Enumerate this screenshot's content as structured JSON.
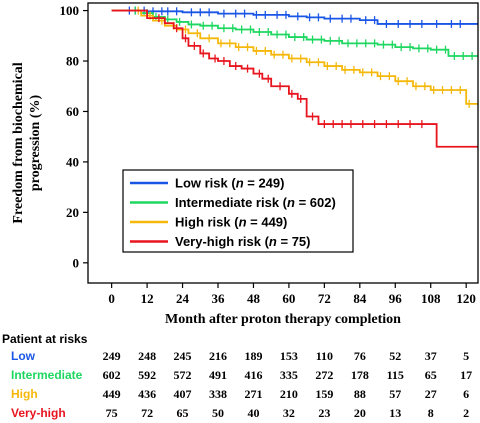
{
  "chart_data": {
    "type": "line",
    "step": true,
    "xlabel": "Month after proton therapy completion",
    "ylabel_lines": [
      "Freedom from biochemical",
      "progression (%)"
    ],
    "xlim": [
      -8,
      124
    ],
    "ylim": [
      -8,
      103
    ],
    "xticks": [
      0,
      12,
      24,
      36,
      48,
      60,
      72,
      84,
      96,
      108,
      120
    ],
    "yticks": [
      0,
      20,
      40,
      60,
      80,
      100
    ],
    "legend_placement": "lower-left",
    "series": [
      {
        "name_prefix": "Low risk (",
        "n_label": "n",
        "name_suffix": " = 249)",
        "color": "#1a56e6",
        "points": [
          [
            0,
            100
          ],
          [
            9,
            100
          ],
          [
            12,
            99.7
          ],
          [
            24,
            99.3
          ],
          [
            36,
            98.8
          ],
          [
            48,
            98.3
          ],
          [
            60,
            97.7
          ],
          [
            66,
            97.3
          ],
          [
            72,
            96.8
          ],
          [
            84,
            96.2
          ],
          [
            90,
            94.7
          ],
          [
            120,
            94.7
          ],
          [
            124,
            94.7
          ]
        ],
        "censor_x": [
          6,
          8,
          11,
          14,
          17,
          19,
          22,
          27,
          30,
          33,
          38,
          42,
          45,
          49,
          52,
          56,
          59,
          63,
          67,
          70,
          74,
          78,
          81,
          86,
          89,
          93,
          97,
          101,
          105,
          110,
          115,
          118
        ]
      },
      {
        "name_prefix": "Intermediate risk (",
        "n_label": "n",
        "name_suffix": " = 602)",
        "color": "#1ed760",
        "points": [
          [
            0,
            100
          ],
          [
            6,
            100
          ],
          [
            10,
            99
          ],
          [
            14,
            97.5
          ],
          [
            18,
            96.5
          ],
          [
            22,
            95.5
          ],
          [
            26,
            94.5
          ],
          [
            30,
            94
          ],
          [
            36,
            93
          ],
          [
            42,
            92.5
          ],
          [
            48,
            91.5
          ],
          [
            54,
            90.5
          ],
          [
            60,
            89.5
          ],
          [
            66,
            88.5
          ],
          [
            72,
            88
          ],
          [
            78,
            87
          ],
          [
            84,
            87
          ],
          [
            90,
            86.5
          ],
          [
            96,
            85.5
          ],
          [
            102,
            85
          ],
          [
            108,
            84.5
          ],
          [
            114,
            82
          ],
          [
            120,
            82
          ],
          [
            124,
            82
          ]
        ],
        "censor_x": [
          8,
          12,
          15,
          19,
          23,
          27,
          31,
          34,
          38,
          41,
          44,
          47,
          50,
          53,
          56,
          59,
          62,
          65,
          68,
          71,
          74,
          77,
          80,
          83,
          86,
          89,
          92,
          95,
          98,
          101,
          104,
          107,
          110,
          113,
          116,
          119,
          122
        ]
      },
      {
        "name_prefix": "High risk (",
        "n_label": "n",
        "name_suffix": " = 449)",
        "color": "#f5b80a",
        "points": [
          [
            0,
            100
          ],
          [
            6,
            100
          ],
          [
            10,
            98
          ],
          [
            14,
            96
          ],
          [
            18,
            94
          ],
          [
            22,
            92.5
          ],
          [
            26,
            91
          ],
          [
            30,
            89
          ],
          [
            36,
            87
          ],
          [
            42,
            85.5
          ],
          [
            48,
            84
          ],
          [
            54,
            82.5
          ],
          [
            60,
            81
          ],
          [
            66,
            79.5
          ],
          [
            72,
            78
          ],
          [
            78,
            76.5
          ],
          [
            84,
            75.5
          ],
          [
            90,
            74
          ],
          [
            96,
            72
          ],
          [
            102,
            70
          ],
          [
            108,
            68.5
          ],
          [
            114,
            68.5
          ],
          [
            120,
            63
          ],
          [
            124,
            63
          ]
        ],
        "censor_x": [
          9,
          13,
          17,
          21,
          25,
          29,
          33,
          37,
          40,
          43,
          46,
          49,
          52,
          55,
          58,
          61,
          64,
          67,
          70,
          73,
          76,
          79,
          82,
          85,
          88,
          91,
          94,
          97,
          100,
          103,
          106,
          109,
          112,
          115,
          118,
          121
        ]
      },
      {
        "name_prefix": "Very-high risk (",
        "n_label": "n",
        "name_suffix": " = 75)",
        "color": "#e8141e",
        "points": [
          [
            0,
            100
          ],
          [
            9,
            100
          ],
          [
            12,
            97
          ],
          [
            18,
            95
          ],
          [
            21,
            93
          ],
          [
            24,
            89
          ],
          [
            26,
            86
          ],
          [
            30,
            83
          ],
          [
            33,
            81
          ],
          [
            36,
            80
          ],
          [
            40,
            78
          ],
          [
            44,
            77
          ],
          [
            48,
            75
          ],
          [
            51,
            73
          ],
          [
            54,
            70
          ],
          [
            60,
            67
          ],
          [
            63,
            65
          ],
          [
            66,
            58
          ],
          [
            70,
            55
          ],
          [
            108,
            55
          ],
          [
            110,
            46
          ],
          [
            124,
            46
          ]
        ],
        "censor_x": [
          16,
          22,
          25,
          28,
          31,
          35,
          38,
          42,
          46,
          50,
          53,
          57,
          61,
          64,
          68,
          72,
          75,
          78,
          81,
          85,
          89,
          93,
          97,
          101,
          105
        ]
      }
    ]
  },
  "risk_table": {
    "header": "Patient at risks",
    "rows": [
      {
        "label": "Low",
        "color": "#1a56e6",
        "values": [
          "249",
          "248",
          "245",
          "216",
          "189",
          "153",
          "110",
          "76",
          "52",
          "37",
          "5"
        ]
      },
      {
        "label": "Intermediate",
        "color": "#1ed760",
        "values": [
          "602",
          "592",
          "572",
          "491",
          "416",
          "335",
          "272",
          "178",
          "115",
          "65",
          "17"
        ]
      },
      {
        "label": "High",
        "color": "#f5b80a",
        "values": [
          "449",
          "436",
          "407",
          "338",
          "271",
          "210",
          "159",
          "88",
          "57",
          "27",
          "6"
        ]
      },
      {
        "label": "Very-high",
        "color": "#e8141e",
        "values": [
          "75",
          "72",
          "65",
          "50",
          "40",
          "32",
          "23",
          "20",
          "13",
          "8",
          "2"
        ]
      }
    ]
  }
}
